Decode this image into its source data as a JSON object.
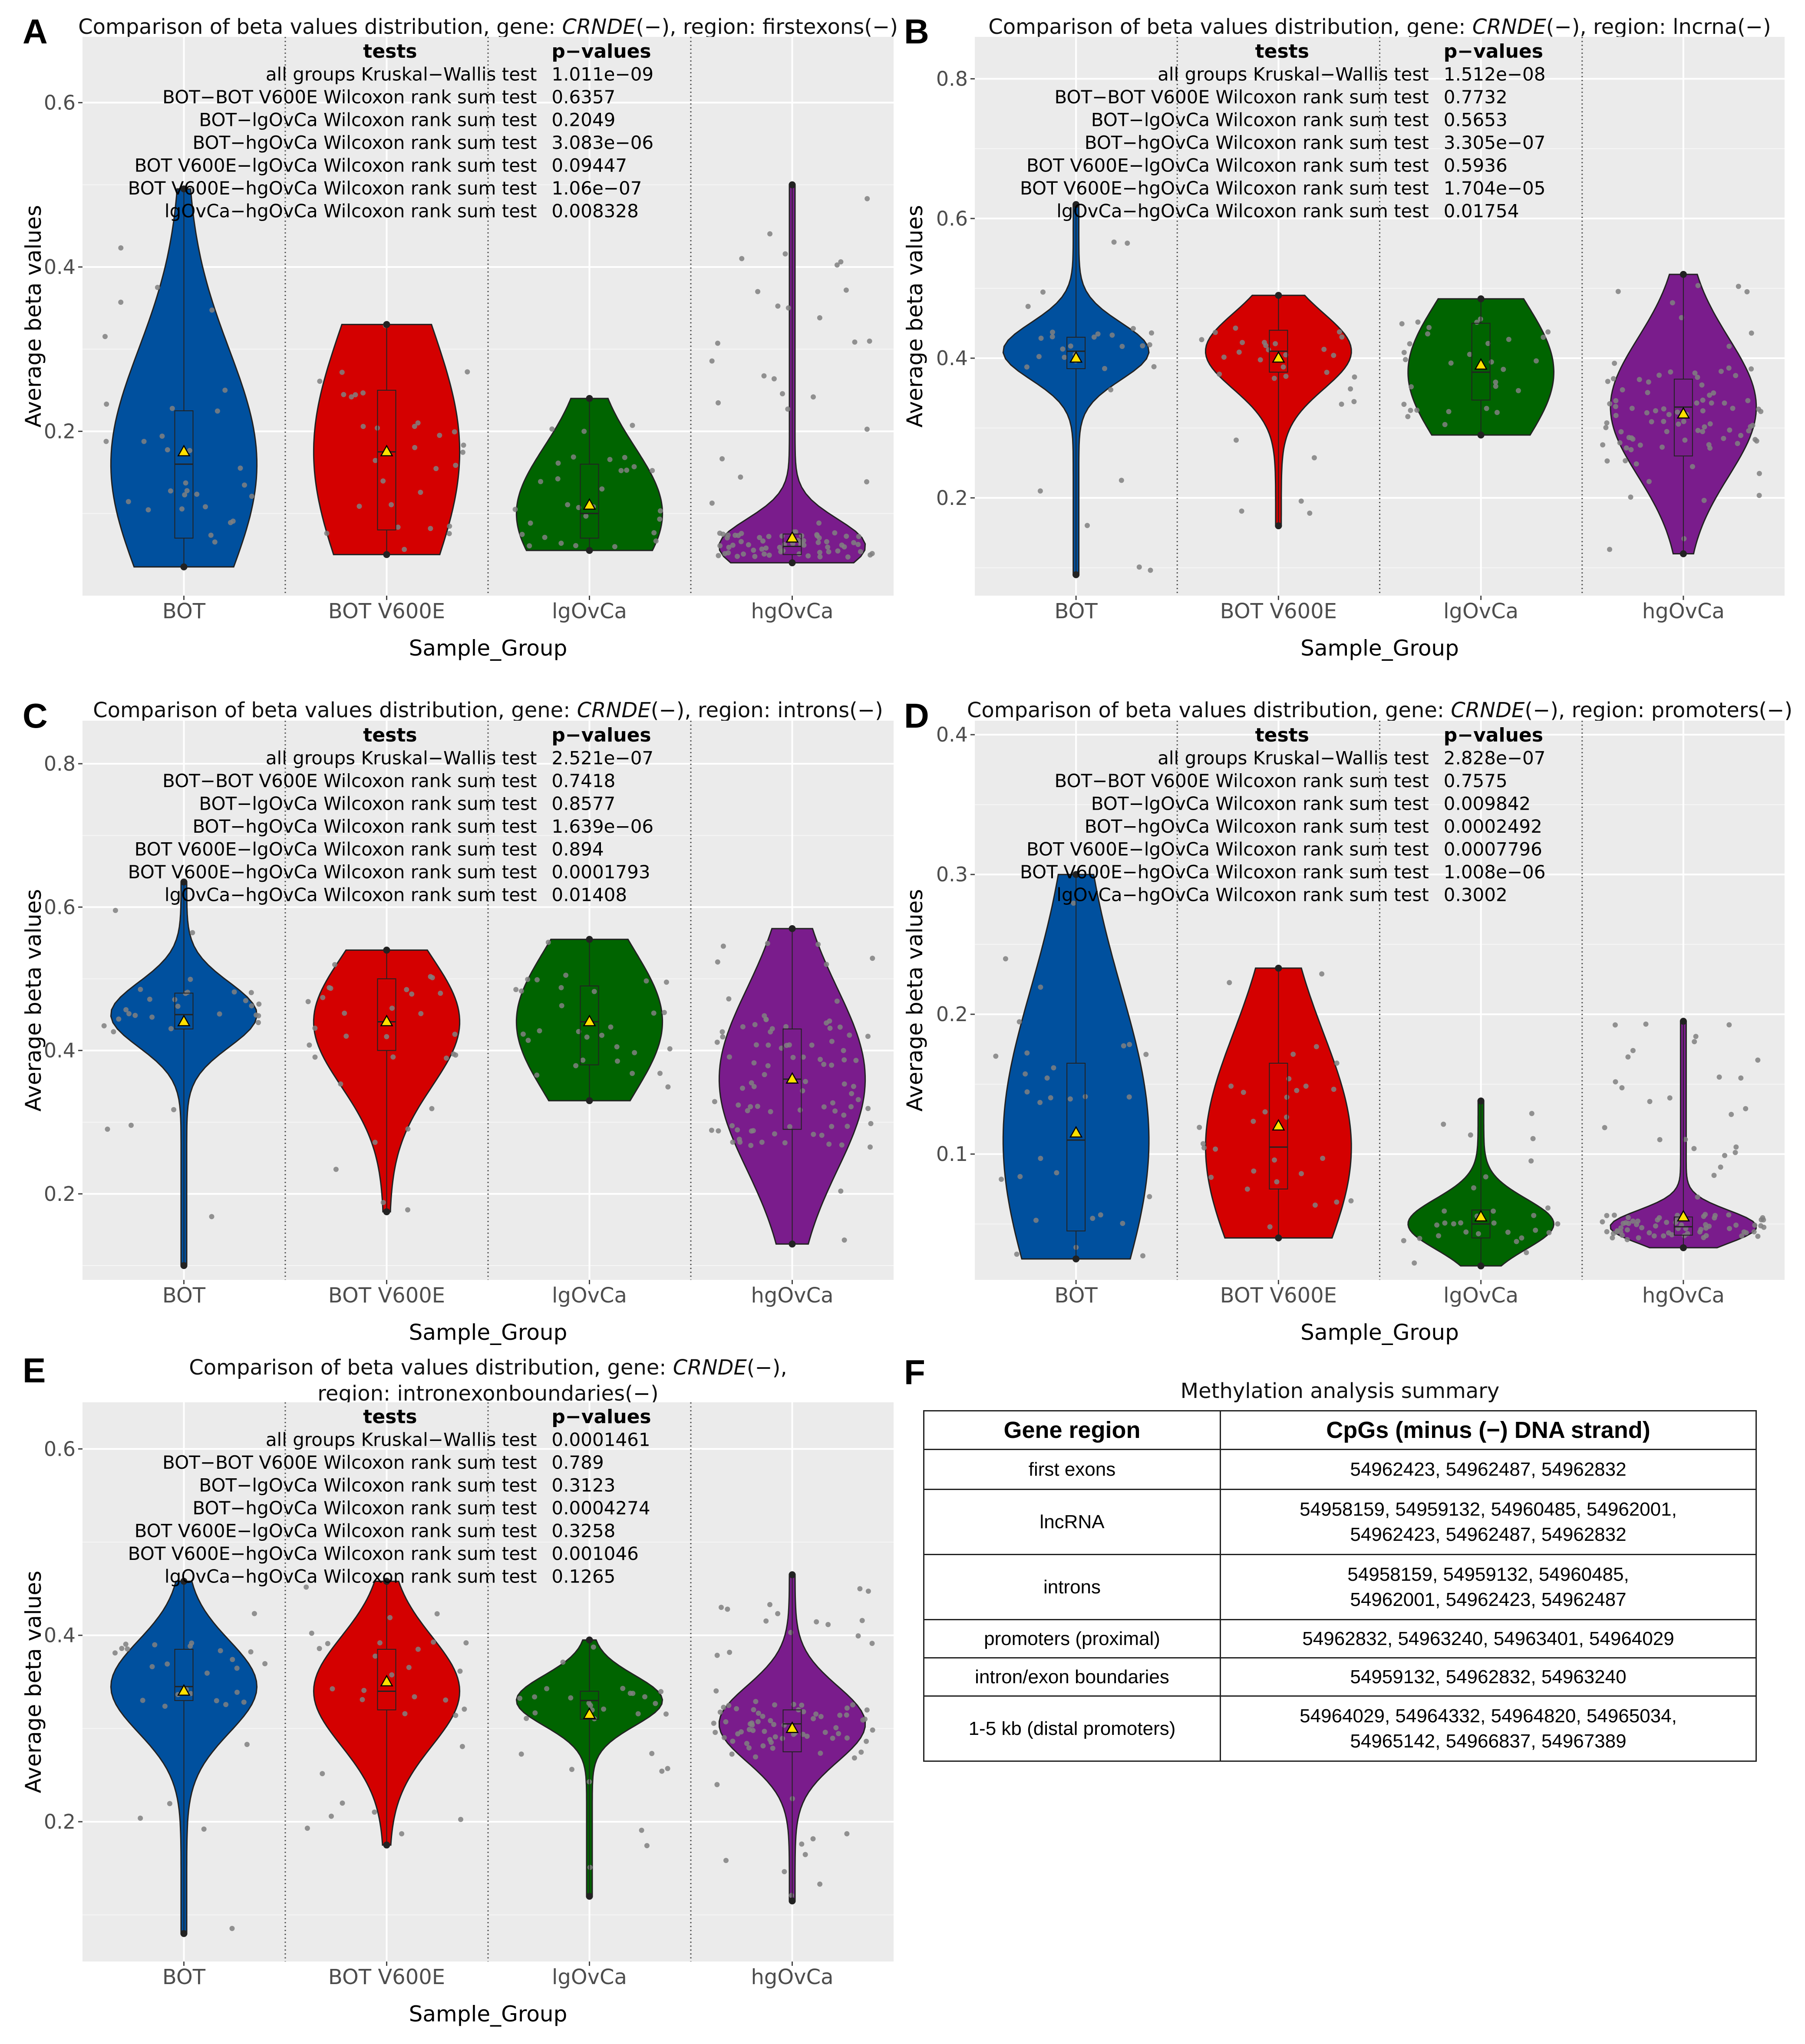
{
  "chart_data": [
    {
      "panel": "A",
      "type": "violin",
      "title_prefix": "Comparison of beta values distribution, gene: ",
      "gene": "CRNDE",
      "title_suffix": "(−), region: firstexons(−)",
      "xlabel": "Sample_Group",
      "ylabel": "Average beta values",
      "ylim": [
        0.0,
        0.68
      ],
      "yticks": [
        0.2,
        0.4,
        0.6
      ],
      "categories": [
        "BOT",
        "BOT V600E",
        "lgOvCa",
        "hgOvCa"
      ],
      "colors": [
        "#00509e",
        "#d40000",
        "#006400",
        "#7a1c8c"
      ],
      "groups": [
        {
          "name": "BOT",
          "min": 0.035,
          "q1": 0.07,
          "median": 0.16,
          "q3": 0.225,
          "max": 0.495,
          "mean": 0.175
        },
        {
          "name": "BOT V600E",
          "min": 0.05,
          "q1": 0.08,
          "median": 0.175,
          "q3": 0.25,
          "max": 0.33,
          "mean": 0.175
        },
        {
          "name": "lgOvCa",
          "min": 0.055,
          "q1": 0.07,
          "median": 0.1,
          "q3": 0.16,
          "max": 0.24,
          "mean": 0.11
        },
        {
          "name": "hgOvCa",
          "min": 0.04,
          "q1": 0.05,
          "median": 0.06,
          "q3": 0.075,
          "max": 0.5,
          "mean": 0.07
        }
      ],
      "tests_header": "tests",
      "pvalues_header": "p−values",
      "tests": [
        {
          "name": "all groups Kruskal−Wallis test",
          "p": "1.011e−09"
        },
        {
          "name": "BOT−BOT V600E Wilcoxon rank sum test",
          "p": "0.6357"
        },
        {
          "name": "BOT−lgOvCa Wilcoxon rank sum test",
          "p": "0.2049"
        },
        {
          "name": "BOT−hgOvCa Wilcoxon rank sum test",
          "p": "3.083e−06"
        },
        {
          "name": "BOT V600E−lgOvCa Wilcoxon rank sum test",
          "p": "0.09447"
        },
        {
          "name": "BOT V600E−hgOvCa Wilcoxon rank sum test",
          "p": "1.06e−07"
        },
        {
          "name": "lgOvCa−hgOvCa Wilcoxon rank sum test",
          "p": "0.008328"
        }
      ]
    },
    {
      "panel": "B",
      "type": "violin",
      "title_prefix": "Comparison of beta values distribution, gene: ",
      "gene": "CRNDE",
      "title_suffix": "(−), region: lncrna(−)",
      "xlabel": "Sample_Group",
      "ylabel": "Average beta values",
      "ylim": [
        0.06,
        0.86
      ],
      "yticks": [
        0.2,
        0.4,
        0.6,
        0.8
      ],
      "categories": [
        "BOT",
        "BOT V600E",
        "lgOvCa",
        "hgOvCa"
      ],
      "colors": [
        "#00509e",
        "#d40000",
        "#006400",
        "#7a1c8c"
      ],
      "groups": [
        {
          "name": "BOT",
          "min": 0.09,
          "q1": 0.385,
          "median": 0.41,
          "q3": 0.43,
          "max": 0.62,
          "mean": 0.4
        },
        {
          "name": "BOT V600E",
          "min": 0.16,
          "q1": 0.38,
          "median": 0.41,
          "q3": 0.44,
          "max": 0.49,
          "mean": 0.4
        },
        {
          "name": "lgOvCa",
          "min": 0.29,
          "q1": 0.34,
          "median": 0.38,
          "q3": 0.45,
          "max": 0.485,
          "mean": 0.39
        },
        {
          "name": "hgOvCa",
          "min": 0.12,
          "q1": 0.26,
          "median": 0.33,
          "q3": 0.37,
          "max": 0.52,
          "mean": 0.32
        }
      ],
      "tests_header": "tests",
      "pvalues_header": "p−values",
      "tests": [
        {
          "name": "all groups Kruskal−Wallis test",
          "p": "1.512e−08"
        },
        {
          "name": "BOT−BOT V600E Wilcoxon rank sum test",
          "p": "0.7732"
        },
        {
          "name": "BOT−lgOvCa Wilcoxon rank sum test",
          "p": "0.5653"
        },
        {
          "name": "BOT−hgOvCa Wilcoxon rank sum test",
          "p": "3.305e−07"
        },
        {
          "name": "BOT V600E−lgOvCa Wilcoxon rank sum test",
          "p": "0.5936"
        },
        {
          "name": "BOT V600E−hgOvCa Wilcoxon rank sum test",
          "p": "1.704e−05"
        },
        {
          "name": "lgOvCa−hgOvCa Wilcoxon rank sum test",
          "p": "0.01754"
        }
      ]
    },
    {
      "panel": "C",
      "type": "violin",
      "title_prefix": "Comparison of beta values distribution, gene: ",
      "gene": "CRNDE",
      "title_suffix": "(−), region: introns(−)",
      "xlabel": "Sample_Group",
      "ylabel": "Average beta values",
      "ylim": [
        0.08,
        0.86
      ],
      "yticks": [
        0.2,
        0.4,
        0.6,
        0.8
      ],
      "categories": [
        "BOT",
        "BOT V600E",
        "lgOvCa",
        "hgOvCa"
      ],
      "colors": [
        "#00509e",
        "#d40000",
        "#006400",
        "#7a1c8c"
      ],
      "groups": [
        {
          "name": "BOT",
          "min": 0.1,
          "q1": 0.43,
          "median": 0.45,
          "q3": 0.48,
          "max": 0.635,
          "mean": 0.44
        },
        {
          "name": "BOT V600E",
          "min": 0.175,
          "q1": 0.4,
          "median": 0.44,
          "q3": 0.5,
          "max": 0.54,
          "mean": 0.44
        },
        {
          "name": "lgOvCa",
          "min": 0.33,
          "q1": 0.38,
          "median": 0.44,
          "q3": 0.49,
          "max": 0.555,
          "mean": 0.44
        },
        {
          "name": "hgOvCa",
          "min": 0.13,
          "q1": 0.29,
          "median": 0.36,
          "q3": 0.43,
          "max": 0.57,
          "mean": 0.36
        }
      ],
      "tests_header": "tests",
      "pvalues_header": "p−values",
      "tests": [
        {
          "name": "all groups Kruskal−Wallis test",
          "p": "2.521e−07"
        },
        {
          "name": "BOT−BOT V600E Wilcoxon rank sum test",
          "p": "0.7418"
        },
        {
          "name": "BOT−lgOvCa Wilcoxon rank sum test",
          "p": "0.8577"
        },
        {
          "name": "BOT−hgOvCa Wilcoxon rank sum test",
          "p": "1.639e−06"
        },
        {
          "name": "BOT V600E−lgOvCa Wilcoxon rank sum test",
          "p": "0.894"
        },
        {
          "name": "BOT V600E−hgOvCa Wilcoxon rank sum test",
          "p": "0.0001793"
        },
        {
          "name": "lgOvCa−hgOvCa Wilcoxon rank sum test",
          "p": "0.01408"
        }
      ]
    },
    {
      "panel": "D",
      "type": "violin",
      "title_prefix": "Comparison of beta values distribution, gene: ",
      "gene": "CRNDE",
      "title_suffix": "(−), region: promoters(−)",
      "xlabel": "Sample_Group",
      "ylabel": "Average beta values",
      "ylim": [
        0.01,
        0.41
      ],
      "yticks": [
        0.1,
        0.2,
        0.3,
        0.4
      ],
      "categories": [
        "BOT",
        "BOT V600E",
        "lgOvCa",
        "hgOvCa"
      ],
      "colors": [
        "#00509e",
        "#d40000",
        "#006400",
        "#7a1c8c"
      ],
      "groups": [
        {
          "name": "BOT",
          "min": 0.025,
          "q1": 0.045,
          "median": 0.11,
          "q3": 0.165,
          "max": 0.3,
          "mean": 0.115
        },
        {
          "name": "BOT V600E",
          "min": 0.04,
          "q1": 0.075,
          "median": 0.105,
          "q3": 0.165,
          "max": 0.233,
          "mean": 0.12
        },
        {
          "name": "lgOvCa",
          "min": 0.02,
          "q1": 0.04,
          "median": 0.05,
          "q3": 0.06,
          "max": 0.138,
          "mean": 0.055
        },
        {
          "name": "hgOvCa",
          "min": 0.033,
          "q1": 0.042,
          "median": 0.048,
          "q3": 0.055,
          "max": 0.195,
          "mean": 0.055
        }
      ],
      "tests_header": "tests",
      "pvalues_header": "p−values",
      "tests": [
        {
          "name": "all groups Kruskal−Wallis test",
          "p": "2.828e−07"
        },
        {
          "name": "BOT−BOT V600E Wilcoxon rank sum test",
          "p": "0.7575"
        },
        {
          "name": "BOT−lgOvCa Wilcoxon rank sum test",
          "p": "0.009842"
        },
        {
          "name": "BOT−hgOvCa Wilcoxon rank sum test",
          "p": "0.0002492"
        },
        {
          "name": "BOT V600E−lgOvCa Wilcoxon rank sum test",
          "p": "0.0007796"
        },
        {
          "name": "BOT V600E−hgOvCa Wilcoxon rank sum test",
          "p": "1.008e−06"
        },
        {
          "name": "lgOvCa−hgOvCa Wilcoxon rank sum test",
          "p": "0.3002"
        }
      ]
    },
    {
      "panel": "E",
      "type": "violin",
      "title_prefix": "Comparison of beta values distribution, gene: ",
      "gene": "CRNDE",
      "title_suffix": "(−),",
      "title_line2": "region: intronexonboundaries(−)",
      "xlabel": "Sample_Group",
      "ylabel": "Average beta values",
      "ylim": [
        0.05,
        0.65
      ],
      "yticks": [
        0.2,
        0.4,
        0.6
      ],
      "categories": [
        "BOT",
        "BOT V600E",
        "lgOvCa",
        "hgOvCa"
      ],
      "colors": [
        "#00509e",
        "#d40000",
        "#006400",
        "#7a1c8c"
      ],
      "groups": [
        {
          "name": "BOT",
          "min": 0.08,
          "q1": 0.33,
          "median": 0.345,
          "q3": 0.385,
          "max": 0.458,
          "mean": 0.34
        },
        {
          "name": "BOT V600E",
          "min": 0.175,
          "q1": 0.32,
          "median": 0.34,
          "q3": 0.385,
          "max": 0.458,
          "mean": 0.35
        },
        {
          "name": "lgOvCa",
          "min": 0.12,
          "q1": 0.31,
          "median": 0.33,
          "q3": 0.34,
          "max": 0.395,
          "mean": 0.315
        },
        {
          "name": "hgOvCa",
          "min": 0.115,
          "q1": 0.275,
          "median": 0.305,
          "q3": 0.32,
          "max": 0.465,
          "mean": 0.3
        }
      ],
      "tests_header": "tests",
      "pvalues_header": "p−values",
      "tests": [
        {
          "name": "all groups Kruskal−Wallis test",
          "p": "0.0001461"
        },
        {
          "name": "BOT−BOT V600E Wilcoxon rank sum test",
          "p": "0.789"
        },
        {
          "name": "BOT−lgOvCa Wilcoxon rank sum test",
          "p": "0.3123"
        },
        {
          "name": "BOT−hgOvCa Wilcoxon rank sum test",
          "p": "0.0004274"
        },
        {
          "name": "BOT V600E−lgOvCa Wilcoxon rank sum test",
          "p": "0.3258"
        },
        {
          "name": "BOT V600E−hgOvCa Wilcoxon rank sum test",
          "p": "0.001046"
        },
        {
          "name": "lgOvCa−hgOvCa Wilcoxon rank sum test",
          "p": "0.1265"
        }
      ]
    },
    {
      "panel": "F",
      "type": "table",
      "title": "Methylation analysis summary",
      "columns": [
        "Gene region",
        "CpGs (minus (−) DNA strand)"
      ],
      "rows": [
        {
          "region": "first exons",
          "cpgs_line1": "54962423, 54962487, 54962832",
          "cpgs_line2": ""
        },
        {
          "region": "lncRNA",
          "cpgs_line1": "54958159, 54959132, 54960485, 54962001,",
          "cpgs_line2": "54962423, 54962487, 54962832"
        },
        {
          "region": "introns",
          "cpgs_line1": "54958159, 54959132, 54960485,",
          "cpgs_line2": "54962001, 54962423, 54962487"
        },
        {
          "region": "promoters (proximal)",
          "cpgs_line1": "54962832, 54963240, 54963401, 54964029",
          "cpgs_line2": ""
        },
        {
          "region": "intron/exon boundaries",
          "cpgs_line1": "54959132, 54962832, 54963240",
          "cpgs_line2": ""
        },
        {
          "region": "1-5 kb (distal promoters)",
          "cpgs_line1": "54964029, 54964332, 54964820, 54965034,",
          "cpgs_line2": "54965142, 54966837, 54967389"
        }
      ]
    }
  ]
}
